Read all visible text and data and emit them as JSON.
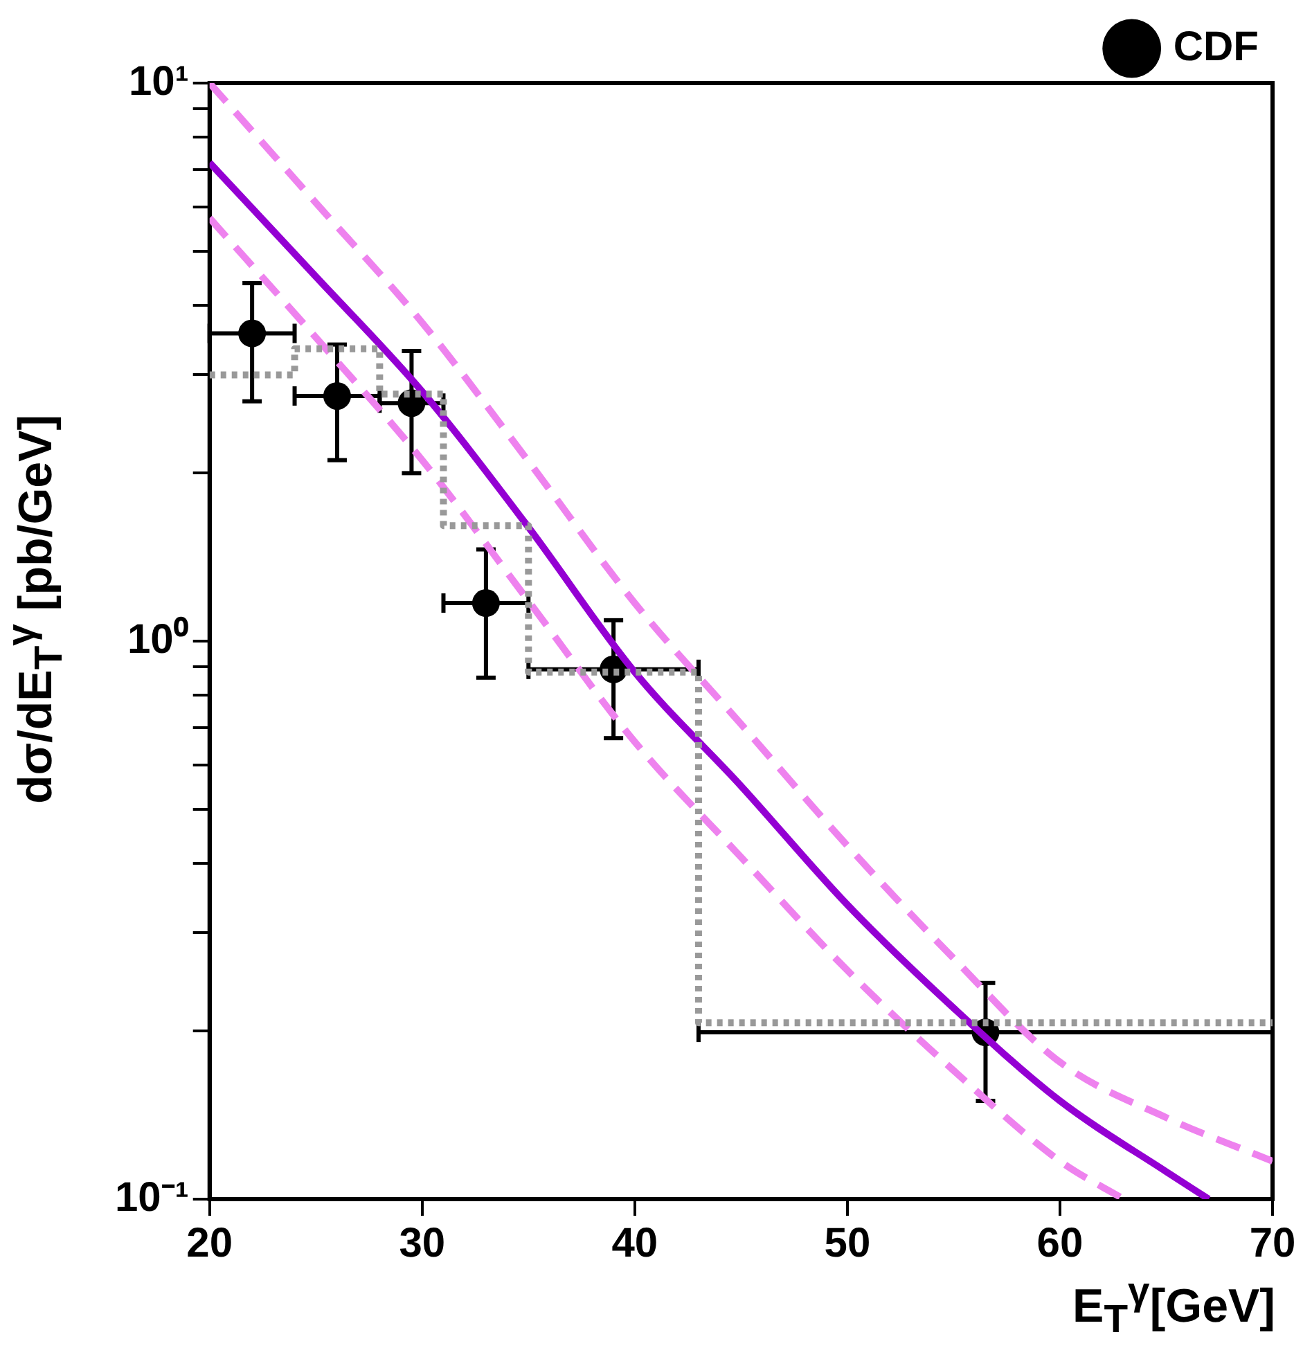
{
  "chart_data": {
    "type": "scatter",
    "xlabel": "E$_{T}$$^{γ}$[GeV]",
    "ylabel": "dσ/dE$_{T}$$^{γ}$ [pb/GeV]",
    "xlim": [
      20,
      70
    ],
    "xticks": [
      20,
      30,
      40,
      50,
      60,
      70
    ],
    "ylim": [
      0.1,
      10
    ],
    "yticks": [
      {
        "value": 0.1,
        "label": "10⁻¹"
      },
      {
        "value": 0.2,
        "label": null
      },
      {
        "value": 0.3,
        "label": null
      },
      {
        "value": 0.4,
        "label": null
      },
      {
        "value": 0.5,
        "label": null
      },
      {
        "value": 0.6,
        "label": null
      },
      {
        "value": 0.7,
        "label": null
      },
      {
        "value": 0.8,
        "label": null
      },
      {
        "value": 0.9,
        "label": null
      },
      {
        "value": 1,
        "label": "10⁰"
      },
      {
        "value": 2,
        "label": null
      },
      {
        "value": 3,
        "label": null
      },
      {
        "value": 4,
        "label": null
      },
      {
        "value": 5,
        "label": null
      },
      {
        "value": 6,
        "label": null
      },
      {
        "value": 7,
        "label": null
      },
      {
        "value": 8,
        "label": null
      },
      {
        "value": 9,
        "label": null
      },
      {
        "value": 10,
        "label": "10¹"
      }
    ],
    "log": "y",
    "grid": false,
    "legend": "top right",
    "series": [
      {
        "type": "step",
        "color": "#999999",
        "line_style": "dotted",
        "marker": "none",
        "x": [
          20,
          24,
          28,
          31,
          35,
          43,
          70
        ],
        "values": [
          3.0,
          3.34,
          2.77,
          1.61,
          0.88,
          0.207,
          0.207
        ]
      },
      {
        "type": "line",
        "color": "#ee82ee",
        "line_style": "dashed",
        "marker": "none",
        "x": [
          20,
          25,
          30,
          35,
          40,
          45,
          50,
          55,
          60,
          65,
          70
        ],
        "values": [
          10,
          6.1,
          3.72,
          2.1,
          1.17,
          0.71,
          0.43,
          0.27,
          0.176,
          0.14,
          0.117
        ]
      },
      {
        "type": "line",
        "color": "#ee82ee",
        "line_style": "dashed",
        "marker": "none",
        "x": [
          20,
          25,
          30,
          35,
          40,
          45,
          50,
          55,
          60,
          63
        ],
        "values": [
          5.73,
          3.5,
          2.11,
          1.18,
          0.66,
          0.41,
          0.257,
          0.17,
          0.117,
          0.1
        ]
      },
      {
        "type": "line",
        "color": "#9400d3",
        "line_style": "solid",
        "marker": "none",
        "x": [
          20,
          25,
          30,
          35,
          40,
          45,
          50,
          55,
          60,
          65,
          67
        ],
        "values": [
          7.2,
          4.5,
          2.8,
          1.6,
          0.88,
          0.55,
          0.337,
          0.22,
          0.15,
          0.112,
          0.1
        ]
      },
      {
        "type": "scatter",
        "name": "CDF",
        "color": "#000000",
        "marker": "circle",
        "x": [
          22,
          26,
          29.5,
          33,
          39,
          56.5
        ],
        "values": [
          3.56,
          2.75,
          2.67,
          1.17,
          0.89,
          0.199
        ],
        "errors": [
          [
            2.69,
            4.38
          ],
          [
            2.11,
            3.4
          ],
          [
            2.0,
            3.31
          ],
          [
            0.86,
            1.46
          ],
          [
            0.67,
            1.09
          ],
          [
            0.15,
            0.244
          ]
        ],
        "xerrors": [
          [
            20,
            24
          ],
          [
            24,
            28
          ],
          [
            28,
            31
          ],
          [
            31,
            35
          ],
          [
            35,
            43
          ],
          [
            43,
            70
          ]
        ]
      }
    ]
  }
}
